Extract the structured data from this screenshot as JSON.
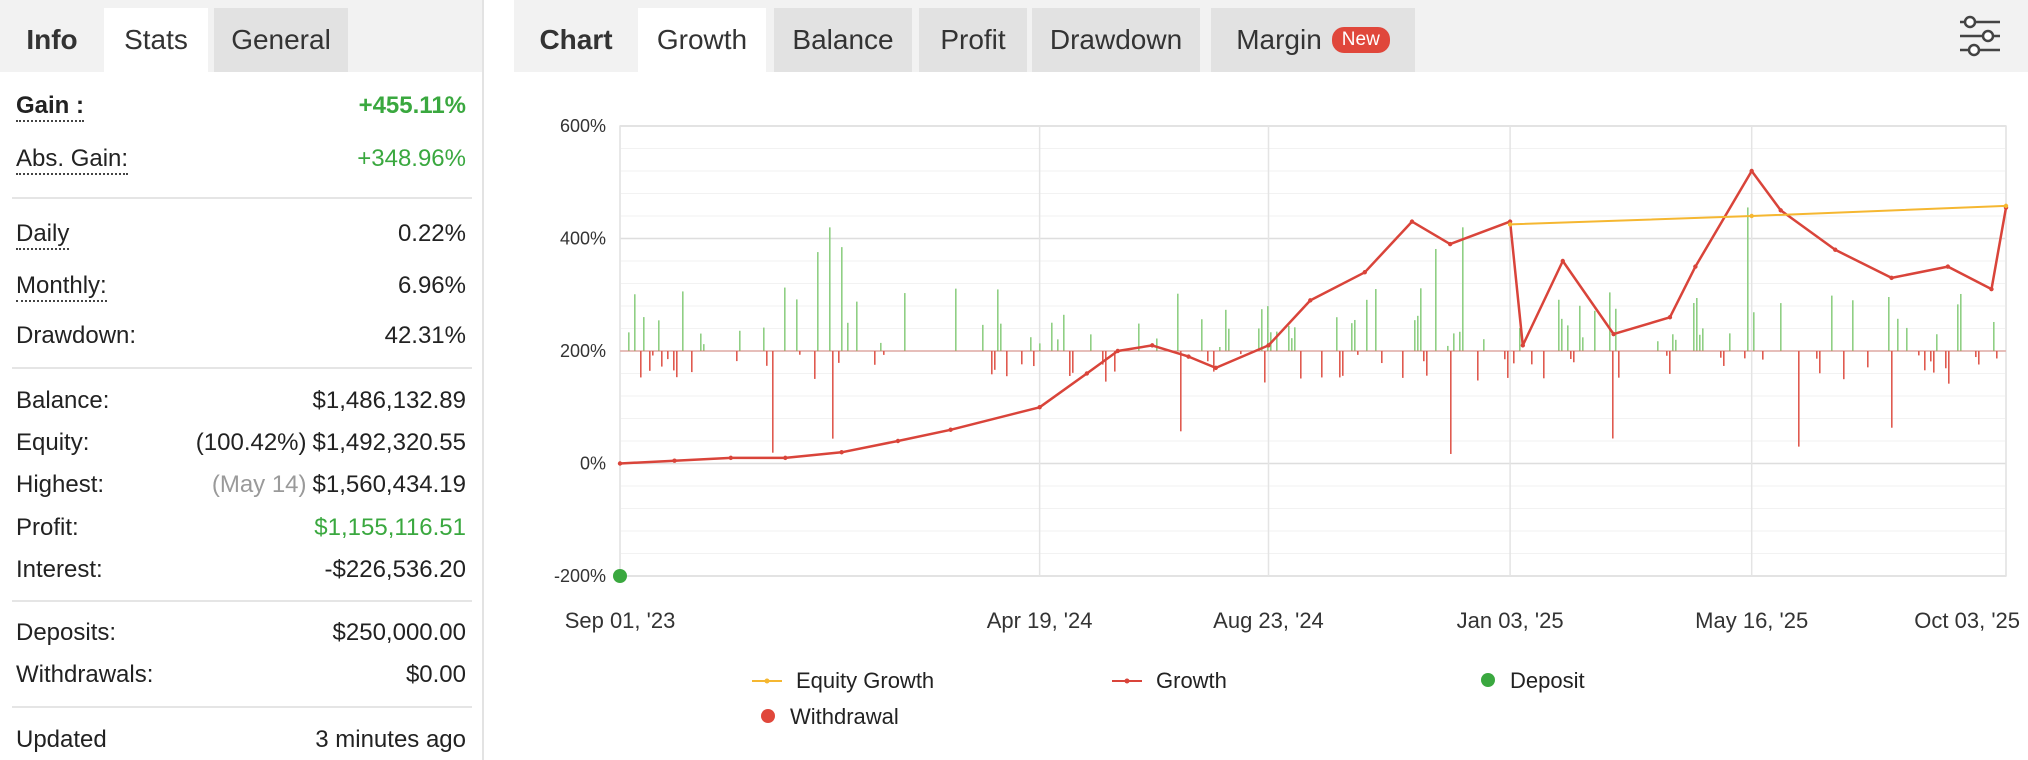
{
  "left_tabs": {
    "info": "Info",
    "stats": "Stats",
    "general": "General"
  },
  "stats": {
    "gain": {
      "label": "Gain :",
      "value": "+455.11%"
    },
    "abs_gain": {
      "label": "Abs. Gain:",
      "value": "+348.96%"
    },
    "daily": {
      "label": "Daily",
      "value": "0.22%"
    },
    "monthly": {
      "label": "Monthly:",
      "value": "6.96%"
    },
    "drawdown": {
      "label": "Drawdown:",
      "value": "42.31%"
    },
    "balance": {
      "label": "Balance:",
      "value": "$1,486,132.89"
    },
    "equity": {
      "label": "Equity:",
      "pct": "(100.42%)",
      "value": "$1,492,320.55"
    },
    "highest": {
      "label": "Highest:",
      "date": "(May 14)",
      "value": "$1,560,434.19"
    },
    "profit": {
      "label": "Profit:",
      "value": "$1,155,116.51"
    },
    "interest": {
      "label": "Interest:",
      "value": "-$226,536.20"
    },
    "deposits": {
      "label": "Deposits:",
      "value": "$250,000.00"
    },
    "withdrawals": {
      "label": "Withdrawals:",
      "value": "$0.00"
    },
    "updated": {
      "label": "Updated",
      "value": "3 minutes ago"
    }
  },
  "right_tabs": {
    "chart": "Chart",
    "growth": "Growth",
    "balance": "Balance",
    "profit": "Profit",
    "drawdown": "Drawdown",
    "margin": "Margin",
    "new_badge": "New"
  },
  "icons": {
    "settings": "sliders-icon"
  },
  "colors": {
    "growth": "#d9443a",
    "equity_growth": "#f5b731",
    "deposit": "#3aa83f",
    "withdrawal": "#e0473b",
    "gain_text": "#3aa83f",
    "bars_positive": "#8fcf84",
    "bars_negative": "#e05a4f"
  },
  "chart_data": {
    "type": "line",
    "y_ticks": [
      "600%",
      "400%",
      "200%",
      "0%",
      "-200%"
    ],
    "x_ticks": [
      "Sep 01, '23",
      "Apr 19, '24",
      "Aug 23, '24",
      "Jan 03, '25",
      "May 16, '25",
      "Oct 03, '25"
    ],
    "ylim": [
      -200,
      600
    ],
    "grid": true,
    "legend": [
      {
        "name": "Equity Growth",
        "color": "#f5b731"
      },
      {
        "name": "Growth",
        "color": "#d9443a"
      },
      {
        "name": "Deposit",
        "color": "#3aa83f"
      },
      {
        "name": "Withdrawal",
        "color": "#e0473b"
      }
    ],
    "series": [
      {
        "name": "Growth",
        "points": [
          [
            "Sep 01, '23",
            0
          ],
          [
            "Oct 01, '23",
            5
          ],
          [
            "Nov 01, '23",
            10
          ],
          [
            "Dec 01, '23",
            10
          ],
          [
            "Jan 01, '24",
            20
          ],
          [
            "Feb 01, '24",
            40
          ],
          [
            "Mar 01, '24",
            60
          ],
          [
            "Apr 19, '24",
            100
          ],
          [
            "May 15, '24",
            160
          ],
          [
            "Jun 01, '24",
            200
          ],
          [
            "Jun 20, '24",
            210
          ],
          [
            "Jul 10, '24",
            190
          ],
          [
            "Jul 25, '24",
            170
          ],
          [
            "Aug 23, '24",
            210
          ],
          [
            "Sep 15, '24",
            290
          ],
          [
            "Oct 15, '24",
            340
          ],
          [
            "Nov 10, '24",
            430
          ],
          [
            "Dec 01, '24",
            390
          ],
          [
            "Jan 03, '25",
            430
          ],
          [
            "Jan 10, '25",
            210
          ],
          [
            "Feb 01, '25",
            360
          ],
          [
            "Mar 01, '25",
            230
          ],
          [
            "Apr 01, '25",
            260
          ],
          [
            "Apr 15, '25",
            350
          ],
          [
            "May 16, '25",
            520
          ],
          [
            "Jun 01, '25",
            450
          ],
          [
            "Jul 01, '25",
            380
          ],
          [
            "Aug 01, '25",
            330
          ],
          [
            "Sep 01, '25",
            350
          ],
          [
            "Sep 25, '25",
            310
          ],
          [
            "Oct 03, '25",
            455
          ]
        ]
      },
      {
        "name": "Equity Growth",
        "points": [
          [
            "Jan 03, '25",
            425
          ],
          [
            "May 16, '25",
            440
          ],
          [
            "Oct 03, '25",
            458
          ]
        ]
      }
    ],
    "deposit_markers": [
      [
        "Sep 01, '23",
        -200
      ]
    ]
  }
}
